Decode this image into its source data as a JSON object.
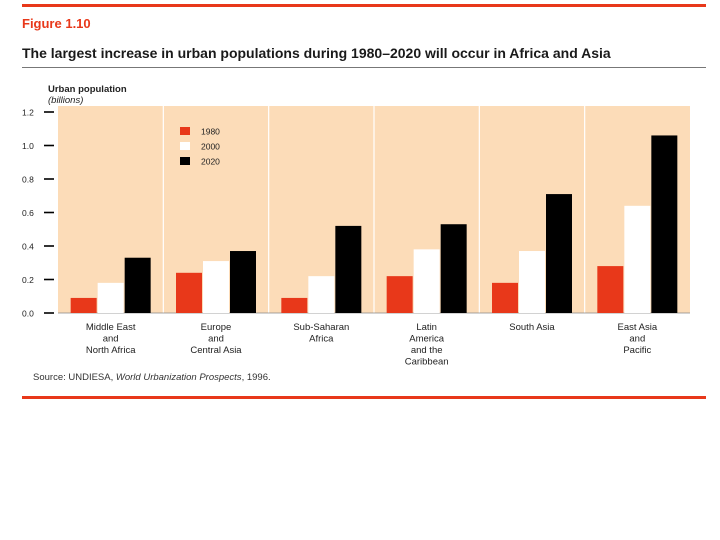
{
  "figure_label": "Figure 1.10",
  "title": "The largest increase in urban populations during 1980–2020 will occur in Africa and Asia",
  "source": {
    "prefix": "Source: UNDIESA, ",
    "publication": "World Urbanization Prospects",
    "suffix": ", 1996."
  },
  "colors": {
    "background": "#fcdcb8",
    "s1980": "#e8381a",
    "s2000": "#ffffff",
    "s2020": "#000000",
    "divider": "#ffffff",
    "accent": "#e8381a"
  },
  "chart_data": {
    "type": "bar",
    "title": "The largest increase in urban populations during 1980–2020 will occur in Africa and Asia",
    "ylabel": "Urban population",
    "yunit": "(billions)",
    "xlabel": "",
    "ylim": [
      0,
      1.2
    ],
    "yticks": [
      "0.0",
      "0.2",
      "0.4",
      "0.6",
      "0.8",
      "1.0",
      "1.2"
    ],
    "categories": [
      [
        "Middle East",
        "and",
        "North Africa"
      ],
      [
        "Europe",
        "and",
        "Central Asia"
      ],
      [
        "Sub-Saharan",
        "Africa"
      ],
      [
        "Latin",
        "America",
        "and the",
        "Caribbean"
      ],
      [
        "South Asia"
      ],
      [
        "East Asia",
        "and",
        "Pacific"
      ]
    ],
    "series": [
      {
        "name": "1980",
        "color": "#e8381a",
        "values": [
          0.09,
          0.24,
          0.09,
          0.22,
          0.18,
          0.28
        ]
      },
      {
        "name": "2000",
        "color": "#ffffff",
        "values": [
          0.18,
          0.31,
          0.22,
          0.38,
          0.37,
          0.64
        ]
      },
      {
        "name": "2020",
        "color": "#000000",
        "values": [
          0.33,
          0.37,
          0.52,
          0.53,
          0.71,
          1.06
        ]
      }
    ],
    "legend": "top-center"
  }
}
